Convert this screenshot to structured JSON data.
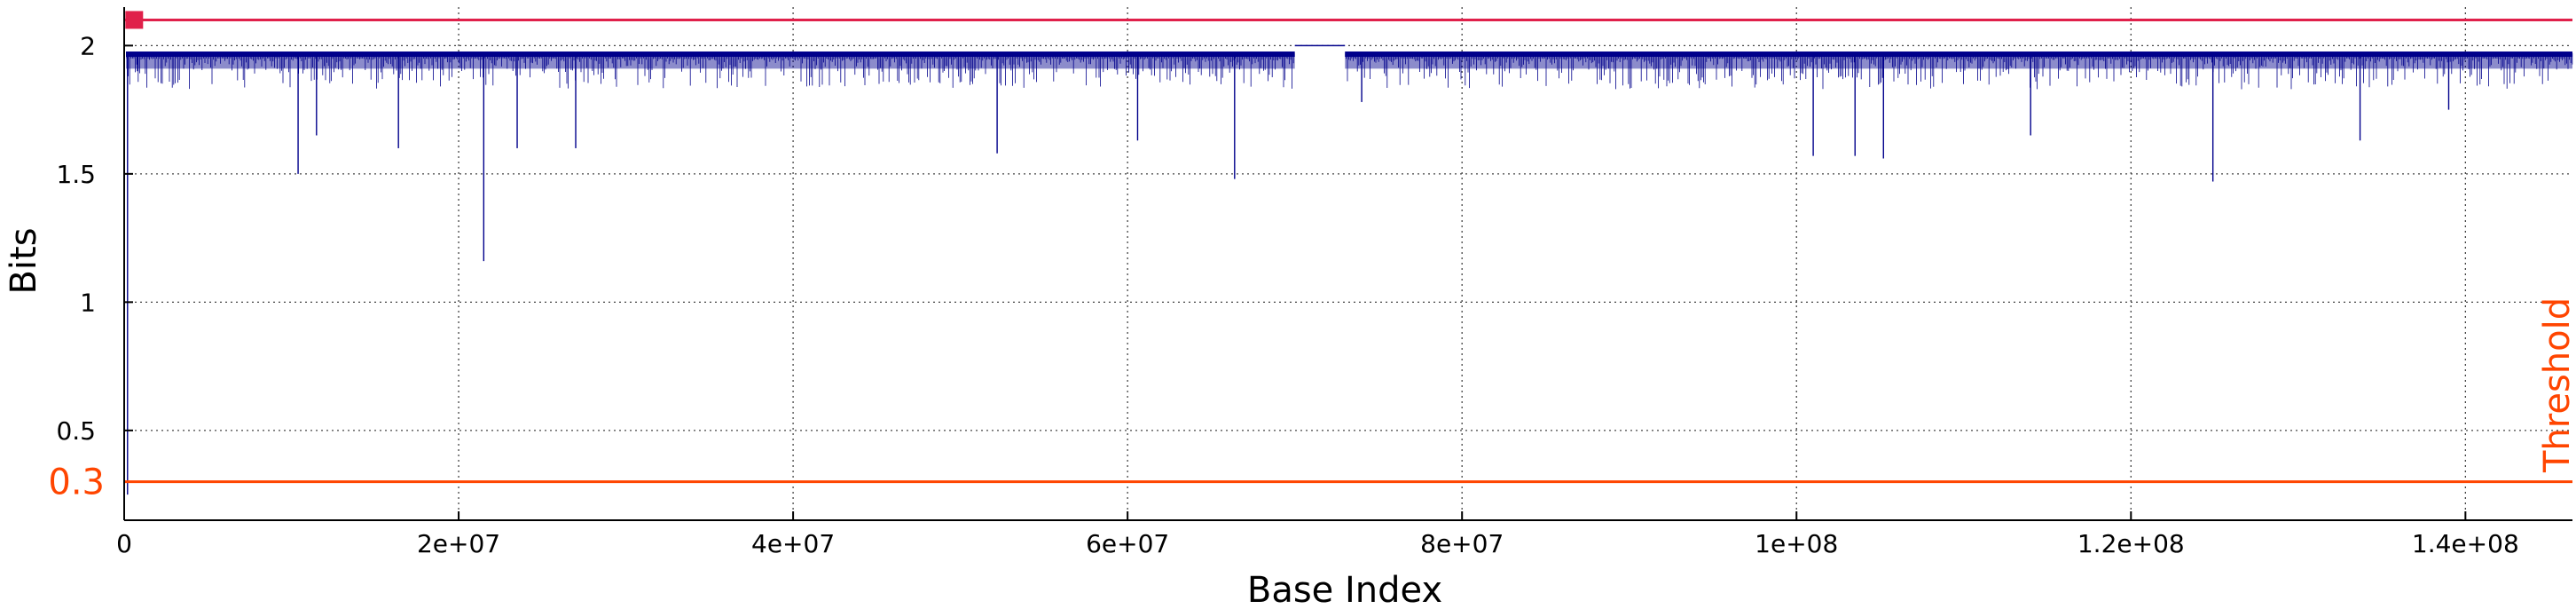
{
  "chart_data": {
    "type": "line",
    "title": "",
    "xlabel": "Base Index",
    "ylabel": "Bits",
    "xlim": [
      0,
      146400000
    ],
    "ylim": [
      0.15,
      2.15
    ],
    "x_ticks": [
      0,
      20000000,
      40000000,
      60000000,
      80000000,
      100000000,
      120000000,
      140000000
    ],
    "x_tick_labels": [
      "0",
      "2e+07",
      "4e+07",
      "6e+07",
      "8e+07",
      "1e+08",
      "1.2e+08",
      "1.4e+08"
    ],
    "y_ticks": [
      0.5,
      1,
      1.5,
      2
    ],
    "y_tick_labels": [
      "0.5",
      "1",
      "1.5",
      "2"
    ],
    "grid": true,
    "series": [
      {
        "color": "#00008b",
        "baseline": 1.97,
        "band_low": 1.91,
        "gap": [
          70000000,
          73000000
        ],
        "gap_value": 2.0,
        "dips": [
          [
            200000,
            0.25
          ],
          [
            800000,
            1.9
          ],
          [
            10400000,
            1.5
          ],
          [
            11500000,
            1.65
          ],
          [
            16400000,
            1.6
          ],
          [
            21500000,
            1.16
          ],
          [
            23500000,
            1.6
          ],
          [
            27000000,
            1.6
          ],
          [
            52200000,
            1.58
          ],
          [
            60600000,
            1.63
          ],
          [
            66400000,
            1.48
          ],
          [
            74000000,
            1.78
          ],
          [
            101000000,
            1.57
          ],
          [
            103500000,
            1.57
          ],
          [
            105200000,
            1.56
          ],
          [
            114000000,
            1.65
          ],
          [
            124900000,
            1.47
          ],
          [
            133700000,
            1.63
          ],
          [
            139000000,
            1.75
          ]
        ]
      }
    ],
    "reference_lines": [
      {
        "y": 2.1,
        "color": "#e0204a"
      },
      {
        "y": 0.3,
        "color": "#ff4500",
        "label": "Threshold",
        "value_label": "0.3"
      }
    ],
    "markers": [
      {
        "x": 600000,
        "y": 2.1,
        "color": "#e0204a"
      }
    ]
  }
}
